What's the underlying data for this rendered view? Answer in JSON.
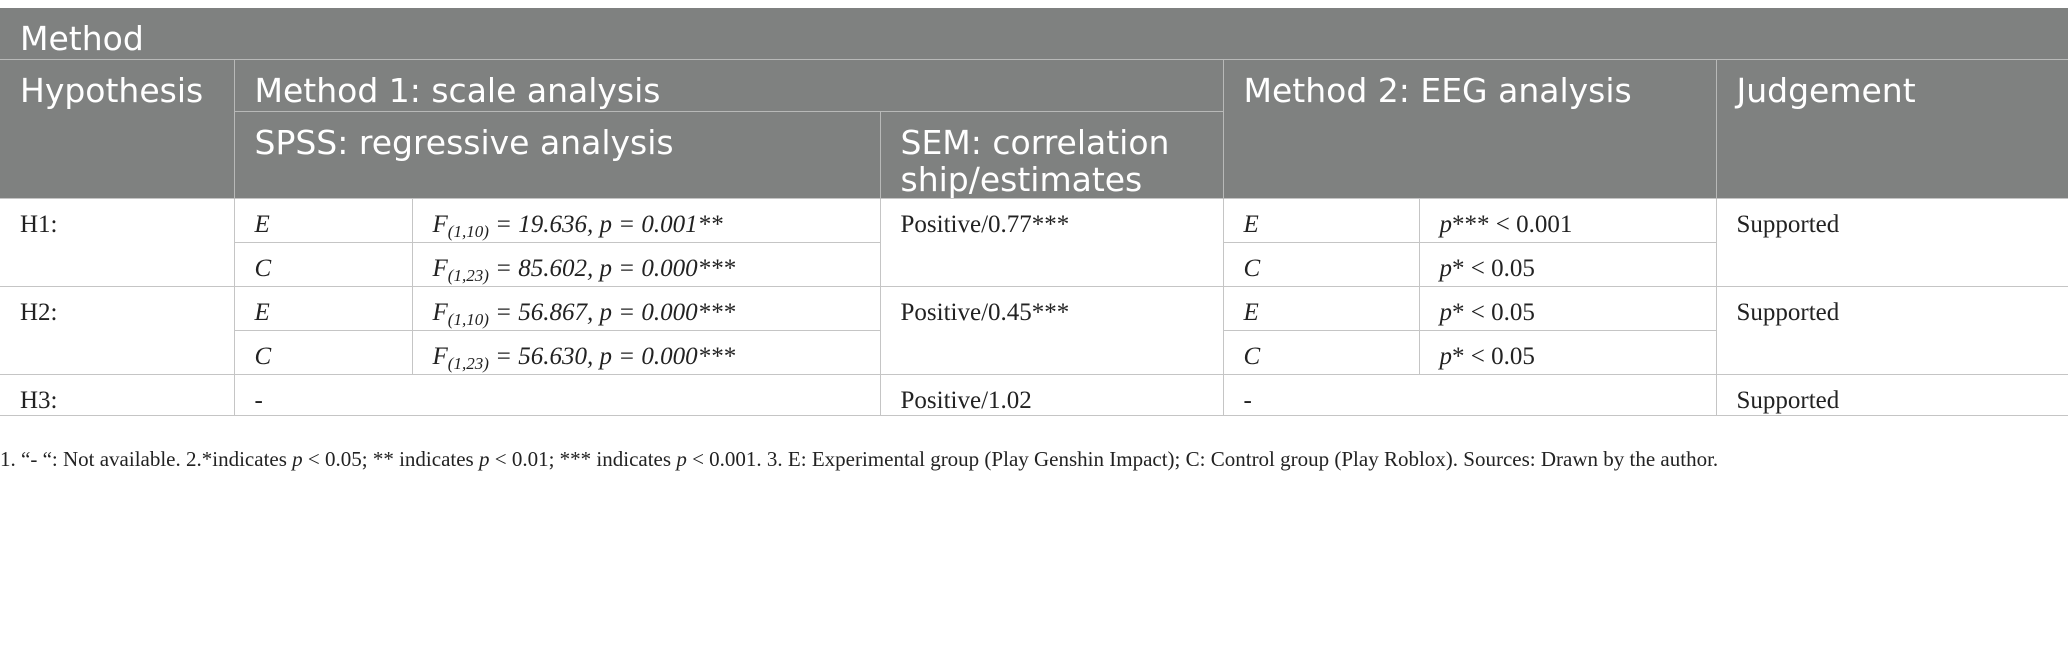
{
  "header": {
    "method": "Method",
    "hypothesis": "Hypothesis",
    "method1": "Method 1: scale analysis",
    "method2": "Method 2: EEG analysis",
    "judgement": "Judgement",
    "spss": "SPSS: regressive analysis",
    "sem": "SEM: correlation ship/estimates"
  },
  "rows": [
    {
      "hypothesis": "H1:",
      "e_label": "E",
      "e_formula": {
        "f": "F",
        "sub": "(1,10)",
        "rest": " = 19.636, p = 0.001**"
      },
      "c_label": "C",
      "c_formula": {
        "f": "F",
        "sub": "(1,23)",
        "rest": " = 85.602, p = 0.000***"
      },
      "sem": "Positive/0.77***",
      "eeg_e_label": "E",
      "eeg_e": {
        "p": "p",
        "rest": "*** < 0.001"
      },
      "eeg_c_label": "C",
      "eeg_c": {
        "p": "p",
        "rest": "* < 0.05"
      },
      "judgement": "Supported"
    },
    {
      "hypothesis": "H2:",
      "e_label": "E",
      "e_formula": {
        "f": "F",
        "sub": "(1,10)",
        "rest": " = 56.867, p = 0.000***"
      },
      "c_label": "C",
      "c_formula": {
        "f": "F",
        "sub": "(1,23)",
        "rest": " = 56.630, p = 0.000***"
      },
      "sem": "Positive/0.45***",
      "eeg_e_label": "E",
      "eeg_e": {
        "p": "p",
        "rest": "* < 0.05"
      },
      "eeg_c_label": "C",
      "eeg_c": {
        "p": "p",
        "rest": "* < 0.05"
      },
      "judgement": "Supported"
    },
    {
      "hypothesis": "H3:",
      "spss": "-",
      "sem": "Positive/1.02",
      "eeg": "-",
      "judgement": "Supported"
    }
  ],
  "footnote": {
    "p1": "1. “- “: Not available. 2.*indicates ",
    "p": "p",
    "p2": " < 0.05; ** indicates ",
    "p3": " < 0.01; *** indicates ",
    "p4": " < 0.001. 3. E: Experimental group (Play Genshin Impact); C: Control group (Play Roblox). Sources: Drawn by the author."
  }
}
